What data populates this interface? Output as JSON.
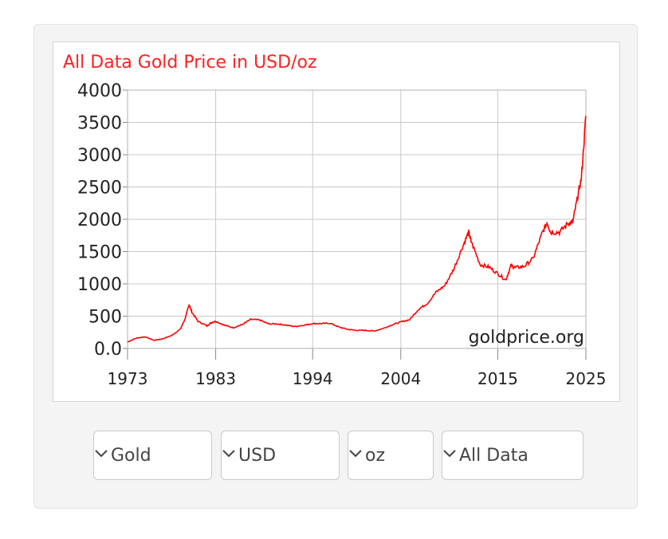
{
  "chart_data": {
    "type": "line",
    "title": "All Data Gold Price in USD/oz",
    "watermark": "goldprice.org",
    "xlabel": "",
    "ylabel": "",
    "xlim": [
      1973,
      2025
    ],
    "ylim": [
      0,
      4000
    ],
    "x_ticks": [
      "1973",
      "1983",
      "1994",
      "2004",
      "2015",
      "2025"
    ],
    "y_ticks": [
      "0.0",
      "500",
      "1000",
      "1500",
      "2000",
      "2500",
      "3000",
      "3500",
      "4000"
    ],
    "grid": true,
    "legend": "none",
    "line_color": "#ff0000",
    "title_color": "#ff2020",
    "series": [
      {
        "x": [
          1973,
          1974,
          1975,
          1976,
          1977,
          1978,
          1979,
          1979.5,
          1980.0,
          1980.3,
          1981,
          1982,
          1982.5,
          1983,
          1984,
          1985,
          1986,
          1987,
          1988,
          1989,
          1990,
          1991,
          1992,
          1993,
          1994,
          1995,
          1996,
          1997,
          1998,
          1999,
          2000,
          2001,
          2002,
          2003,
          2004,
          2005,
          2006,
          2007,
          2008,
          2009,
          2010,
          2011,
          2011.7,
          2012,
          2013,
          2014,
          2015,
          2015.9,
          2016.5,
          2017,
          2018,
          2019,
          2020,
          2020.6,
          2021,
          2022,
          2023,
          2023.5,
          2024,
          2024.5,
          2025
        ],
        "values": [
          100,
          160,
          180,
          125,
          150,
          200,
          300,
          450,
          680,
          560,
          420,
          350,
          400,
          420,
          360,
          320,
          370,
          450,
          440,
          380,
          380,
          360,
          340,
          360,
          385,
          385,
          390,
          330,
          295,
          280,
          280,
          270,
          310,
          365,
          410,
          445,
          605,
          695,
          870,
          975,
          1225,
          1570,
          1800,
          1650,
          1300,
          1260,
          1160,
          1060,
          1280,
          1250,
          1270,
          1390,
          1770,
          1950,
          1800,
          1800,
          1940,
          1950,
          2300,
          2650,
          3600
        ]
      }
    ]
  },
  "controls": {
    "metal": "Gold",
    "currency": "USD",
    "unit": "oz",
    "range": "All Data"
  }
}
